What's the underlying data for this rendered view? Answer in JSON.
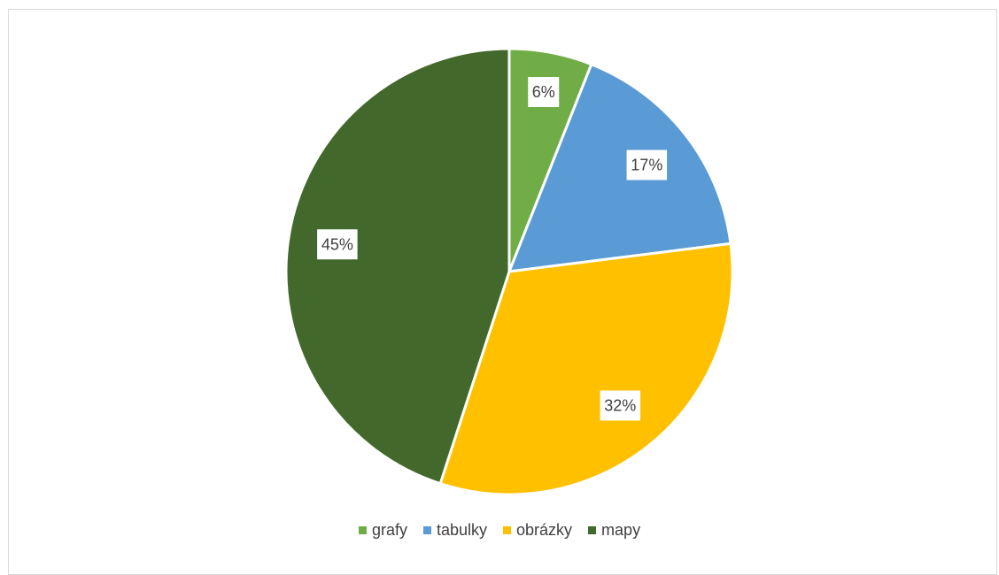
{
  "chart_data": {
    "type": "pie",
    "title": "",
    "categories": [
      "grafy",
      "tabulky",
      "obrázky",
      "mapy"
    ],
    "values": [
      6,
      17,
      32,
      45
    ],
    "data_labels": [
      "6%",
      "17%",
      "32%",
      "45%"
    ],
    "colors": [
      "#70ad47",
      "#5b9bd5",
      "#ffc000",
      "#43682b"
    ],
    "legend_position": "bottom",
    "start_angle_deg": 0,
    "direction": "clockwise"
  }
}
